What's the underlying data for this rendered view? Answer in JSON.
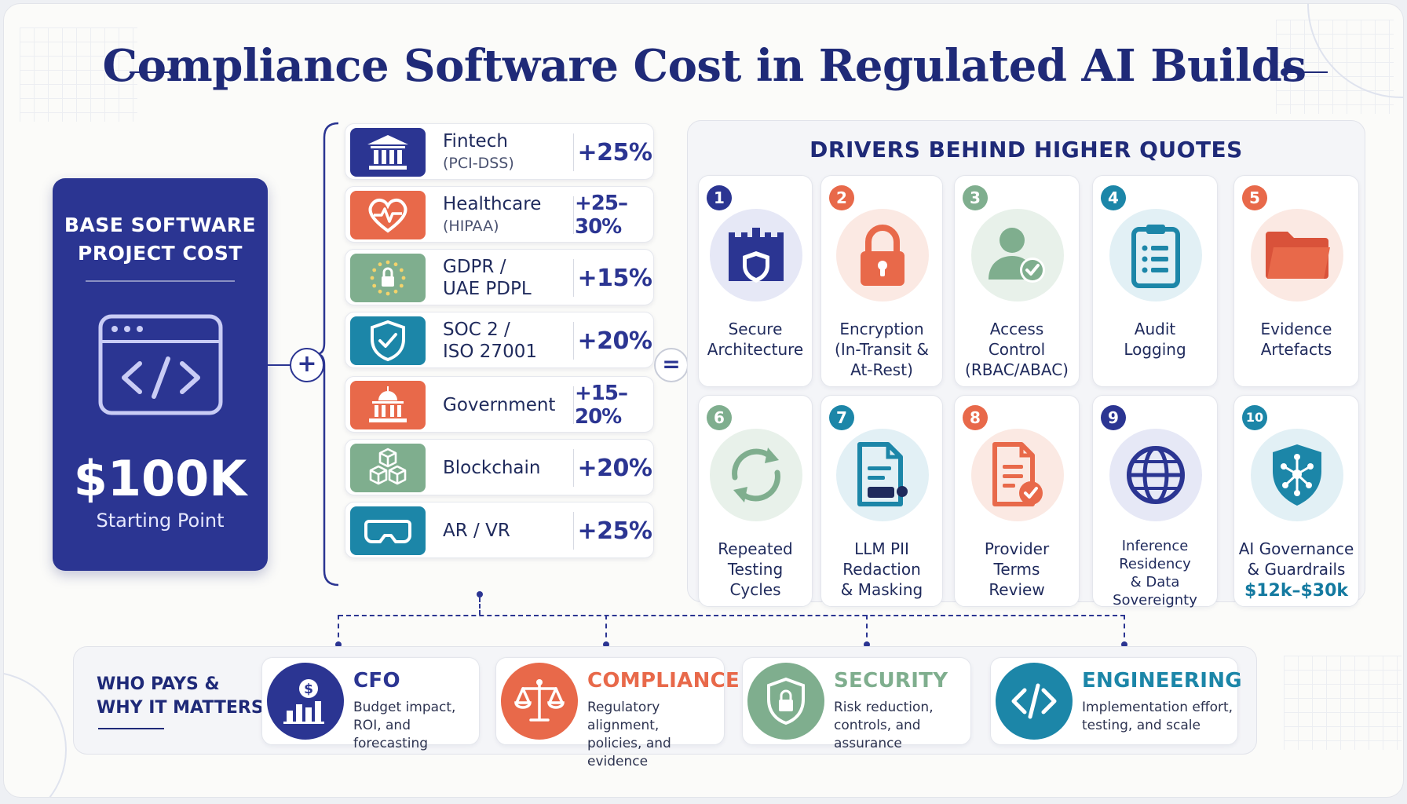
{
  "title": "Compliance Software Cost in Regulated AI Builds",
  "base": {
    "title": "BASE SOFTWARE\nPROJECT COST",
    "value": "$100K",
    "subtitle": "Starting Point",
    "icon": "code-window-icon"
  },
  "operators": {
    "plus": "+",
    "equals": "="
  },
  "industries": [
    {
      "name": "Fintech",
      "sub": "(PCI-DSS)",
      "pct": "+25%",
      "icon": "bank-icon",
      "color": "#2b3592"
    },
    {
      "name": "Healthcare",
      "sub": "(HIPAA)",
      "pct": "+25–30%",
      "icon": "heart-pulse-icon",
      "color": "#e8694a"
    },
    {
      "name": "GDPR /",
      "sub": "UAE PDPL",
      "pct": "+15%",
      "icon": "eu-lock-icon",
      "color": "#7fae8e"
    },
    {
      "name": "SOC 2 /",
      "sub": "ISO 27001",
      "pct": "+20%",
      "icon": "shield-check-icon",
      "color": "#1c86a8"
    },
    {
      "name": "Government",
      "sub": "",
      "pct": "+15–20%",
      "icon": "capitol-icon",
      "color": "#e8694a"
    },
    {
      "name": "Blockchain",
      "sub": "",
      "pct": "+20%",
      "icon": "blocks-icon",
      "color": "#7fae8e"
    },
    {
      "name": "AR / VR",
      "sub": "",
      "pct": "+25%",
      "icon": "vr-headset-icon",
      "color": "#1c86a8"
    }
  ],
  "drivers": {
    "title": "DRIVERS BEHIND HIGHER QUOTES",
    "items": [
      {
        "num": "1",
        "label": "Secure\nArchitecture",
        "icon": "castle-shield-icon",
        "color": "#2b3592",
        "bg": "#e6e8f6"
      },
      {
        "num": "2",
        "label": "Encryption\n(In-Transit &\nAt-Rest)",
        "icon": "padlock-icon",
        "color": "#e8694a",
        "bg": "#fbe9e3"
      },
      {
        "num": "3",
        "label": "Access\nControl\n(RBAC/ABAC)",
        "icon": "user-check-icon",
        "color": "#7fae8e",
        "bg": "#e8f1ea"
      },
      {
        "num": "4",
        "label": "Audit\nLogging",
        "icon": "clipboard-icon",
        "color": "#1c86a8",
        "bg": "#e2f0f5"
      },
      {
        "num": "5",
        "label": "Evidence\nArtefacts",
        "icon": "folder-icon",
        "color": "#e8694a",
        "bg": "#fbe9e3"
      },
      {
        "num": "6",
        "label": "Repeated\nTesting\nCycles",
        "icon": "cycle-arrows-icon",
        "color": "#7fae8e",
        "bg": "#e8f1ea"
      },
      {
        "num": "7",
        "label": "LLM PII\nRedaction\n& Masking",
        "icon": "redacted-document-icon",
        "color": "#1c86a8",
        "bg": "#e2f0f5"
      },
      {
        "num": "8",
        "label": "Provider\nTerms\nReview",
        "icon": "document-check-icon",
        "color": "#e8694a",
        "bg": "#fbe9e3"
      },
      {
        "num": "9",
        "label": "Inference\nResidency\n& Data\nSovereignty",
        "icon": "globe-icon",
        "color": "#2b3592",
        "bg": "#e6e8f6"
      },
      {
        "num": "10",
        "label": "AI Governance\n& Guardrails",
        "cost": "$12k–$30k",
        "icon": "ai-shield-icon",
        "color": "#1c86a8",
        "bg": "#e2f0f5"
      }
    ]
  },
  "who_pays": {
    "title": "WHO PAYS &\nWHY IT MATTERS",
    "roles": [
      {
        "name": "CFO",
        "desc": "Budget impact,\nROI, and forecasting",
        "icon": "dollar-chart-icon",
        "color": "#2b3592"
      },
      {
        "name": "COMPLIANCE",
        "desc": "Regulatory alignment,\npolicies, and evidence",
        "icon": "scales-icon",
        "color": "#e8694a"
      },
      {
        "name": "SECURITY",
        "desc": "Risk reduction,\ncontrols, and assurance",
        "icon": "shield-lock-icon",
        "color": "#7fae8e"
      },
      {
        "name": "ENGINEERING",
        "desc": "Implementation effort,\ntesting, and scale",
        "icon": "code-brackets-icon",
        "color": "#1c86a8"
      }
    ]
  }
}
